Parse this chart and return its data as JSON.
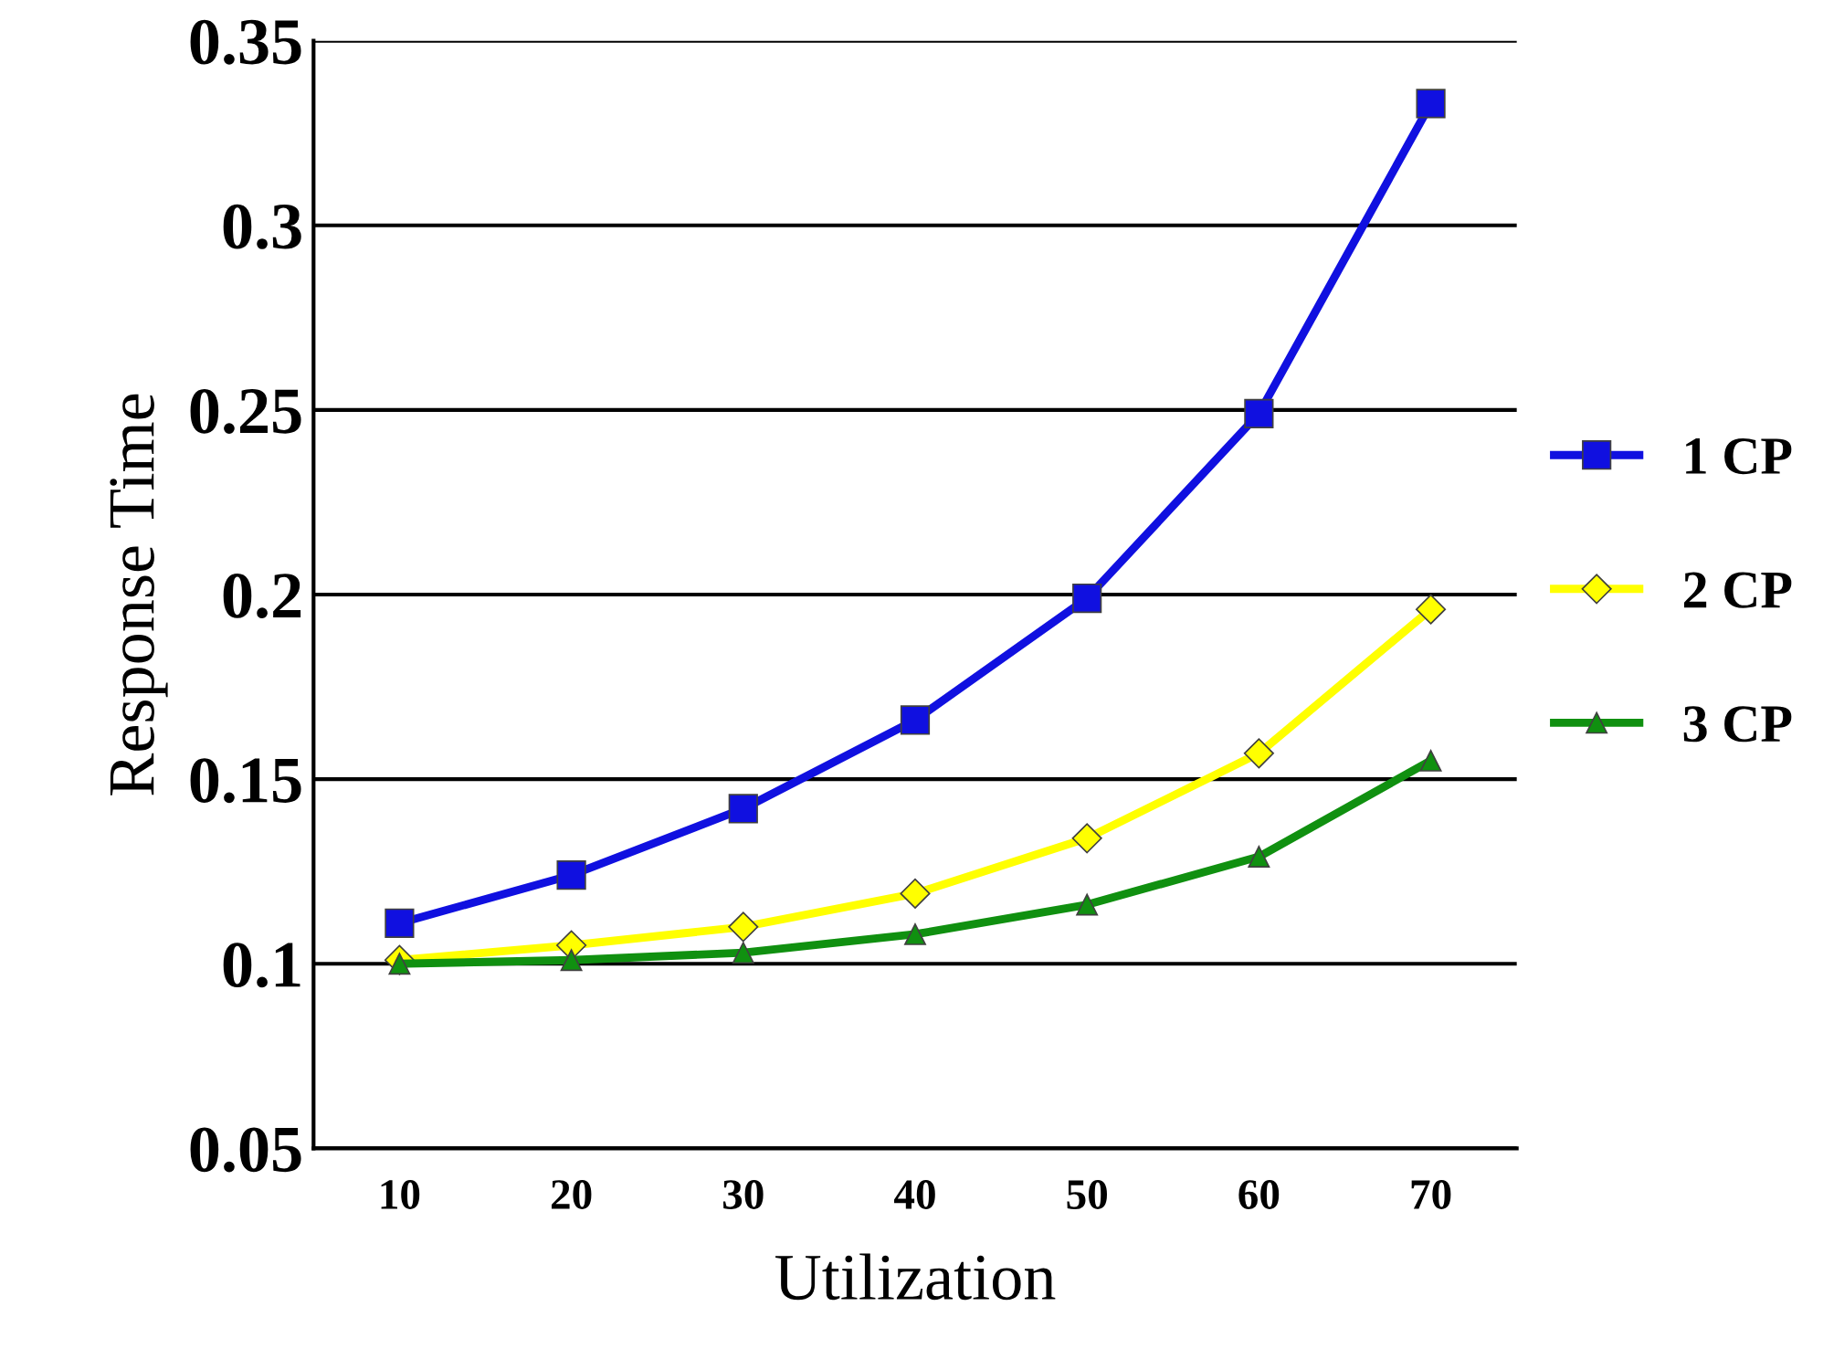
{
  "chart_data": {
    "type": "line",
    "xlabel": "Utilization",
    "ylabel": "Response Time",
    "categories": [
      "10",
      "20",
      "30",
      "40",
      "50",
      "60",
      "70"
    ],
    "series": [
      {
        "name": "1 CP",
        "color": "#1010e0",
        "marker": "square",
        "values": [
          0.111,
          0.124,
          0.142,
          0.166,
          0.199,
          0.249,
          0.333
        ]
      },
      {
        "name": "2 CP",
        "color": "#ffff00",
        "marker": "diamond",
        "values": [
          0.101,
          0.105,
          0.11,
          0.119,
          0.134,
          0.157,
          0.196
        ]
      },
      {
        "name": "3 CP",
        "color": "#109010",
        "marker": "triangle",
        "values": [
          0.1,
          0.101,
          0.103,
          0.108,
          0.116,
          0.129,
          0.155
        ]
      }
    ],
    "ylim": [
      0.05,
      0.35
    ],
    "yticks": [
      0.05,
      0.1,
      0.15,
      0.2,
      0.25,
      0.3,
      0.35
    ],
    "grid": "y",
    "legend": "right",
    "line_style": "solid"
  }
}
